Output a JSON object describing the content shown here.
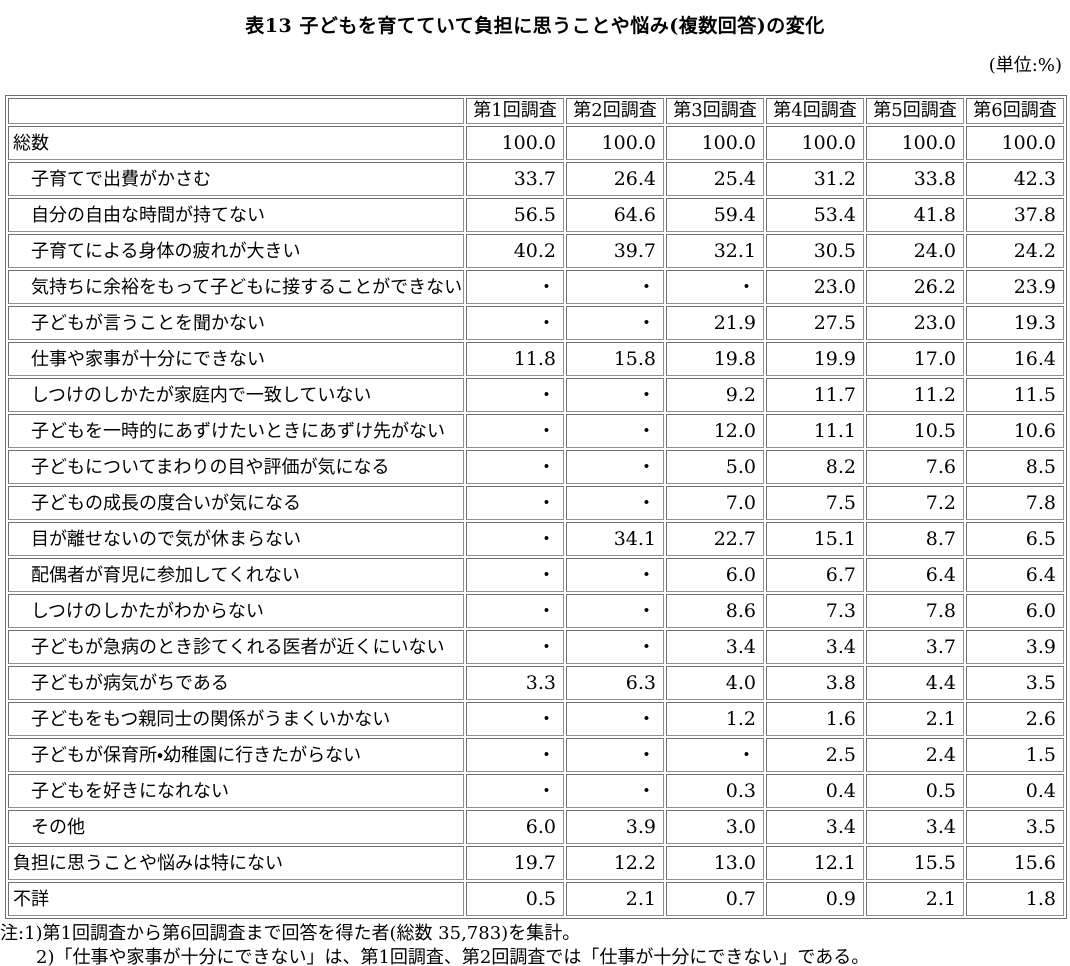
{
  "title": "表13 子どもを育てていて負担に思うことや悩み(複数回答)の変化",
  "unit_label": "(単位:%)",
  "table": {
    "corner_label": "",
    "columns": [
      "第1回調査",
      "第2回調査",
      "第3回調査",
      "第4回調査",
      "第5回調査",
      "第6回調査"
    ],
    "empty_marker": "・",
    "rows": [
      {
        "label": "総数",
        "indent": false,
        "values": [
          "100.0",
          "100.0",
          "100.0",
          "100.0",
          "100.0",
          "100.0"
        ]
      },
      {
        "label": "子育てで出費がかさむ",
        "indent": true,
        "values": [
          "33.7",
          "26.4",
          "25.4",
          "31.2",
          "33.8",
          "42.3"
        ]
      },
      {
        "label": "自分の自由な時間が持てない",
        "indent": true,
        "values": [
          "56.5",
          "64.6",
          "59.4",
          "53.4",
          "41.8",
          "37.8"
        ]
      },
      {
        "label": "子育てによる身体の疲れが大きい",
        "indent": true,
        "values": [
          "40.2",
          "39.7",
          "32.1",
          "30.5",
          "24.0",
          "24.2"
        ]
      },
      {
        "label": "気持ちに余裕をもって子どもに接することができない",
        "indent": true,
        "values": [
          "・",
          "・",
          "・",
          "23.0",
          "26.2",
          "23.9"
        ]
      },
      {
        "label": "子どもが言うことを聞かない",
        "indent": true,
        "values": [
          "・",
          "・",
          "21.9",
          "27.5",
          "23.0",
          "19.3"
        ]
      },
      {
        "label": "仕事や家事が十分にできない",
        "indent": true,
        "values": [
          "11.8",
          "15.8",
          "19.8",
          "19.9",
          "17.0",
          "16.4"
        ]
      },
      {
        "label": "しつけのしかたが家庭内で一致していない",
        "indent": true,
        "values": [
          "・",
          "・",
          "9.2",
          "11.7",
          "11.2",
          "11.5"
        ]
      },
      {
        "label": "子どもを一時的にあずけたいときにあずけ先がない",
        "indent": true,
        "values": [
          "・",
          "・",
          "12.0",
          "11.1",
          "10.5",
          "10.6"
        ]
      },
      {
        "label": "子どもについてまわりの目や評価が気になる",
        "indent": true,
        "values": [
          "・",
          "・",
          "5.0",
          "8.2",
          "7.6",
          "8.5"
        ]
      },
      {
        "label": "子どもの成長の度合いが気になる",
        "indent": true,
        "values": [
          "・",
          "・",
          "7.0",
          "7.5",
          "7.2",
          "7.8"
        ]
      },
      {
        "label": "目が離せないので気が休まらない",
        "indent": true,
        "values": [
          "・",
          "34.1",
          "22.7",
          "15.1",
          "8.7",
          "6.5"
        ]
      },
      {
        "label": "配偶者が育児に参加してくれない",
        "indent": true,
        "values": [
          "・",
          "・",
          "6.0",
          "6.7",
          "6.4",
          "6.4"
        ]
      },
      {
        "label": "しつけのしかたがわからない",
        "indent": true,
        "values": [
          "・",
          "・",
          "8.6",
          "7.3",
          "7.8",
          "6.0"
        ]
      },
      {
        "label": "子どもが急病のとき診てくれる医者が近くにいない",
        "indent": true,
        "values": [
          "・",
          "・",
          "3.4",
          "3.4",
          "3.7",
          "3.9"
        ]
      },
      {
        "label": "子どもが病気がちである",
        "indent": true,
        "values": [
          "3.3",
          "6.3",
          "4.0",
          "3.8",
          "4.4",
          "3.5"
        ]
      },
      {
        "label": "子どもをもつ親同士の関係がうまくいかない",
        "indent": true,
        "values": [
          "・",
          "・",
          "1.2",
          "1.6",
          "2.1",
          "2.6"
        ]
      },
      {
        "label": "子どもが保育所・幼稚園に行きたがらない",
        "indent": true,
        "values": [
          "・",
          "・",
          "・",
          "2.5",
          "2.4",
          "1.5"
        ]
      },
      {
        "label": "子どもを好きになれない",
        "indent": true,
        "values": [
          "・",
          "・",
          "0.3",
          "0.4",
          "0.5",
          "0.4"
        ]
      },
      {
        "label": "その他",
        "indent": true,
        "values": [
          "6.0",
          "3.9",
          "3.0",
          "3.4",
          "3.4",
          "3.5"
        ]
      },
      {
        "label": "負担に思うことや悩みは特にない",
        "indent": false,
        "values": [
          "19.7",
          "12.2",
          "13.0",
          "12.1",
          "15.5",
          "15.6"
        ]
      },
      {
        "label": "不詳",
        "indent": false,
        "values": [
          "0.5",
          "2.1",
          "0.7",
          "0.9",
          "2.1",
          "1.8"
        ]
      }
    ]
  },
  "notes": {
    "line1": "注:1)第1回調査から第6回調査まで回答を得た者(総数 35,783)を集計。",
    "line2": "2)「仕事や家事が十分にできない」は、第1回調査、第2回調査では「仕事が十分にできない」である。"
  }
}
